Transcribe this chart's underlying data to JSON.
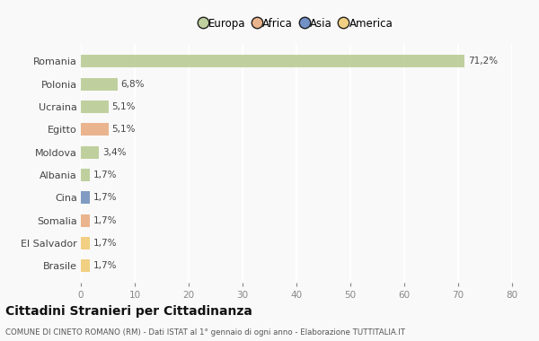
{
  "categories": [
    "Romania",
    "Polonia",
    "Ucraina",
    "Egitto",
    "Moldova",
    "Albania",
    "Cina",
    "Somalia",
    "El Salvador",
    "Brasile"
  ],
  "values": [
    71.2,
    6.8,
    5.1,
    5.1,
    3.4,
    1.7,
    1.7,
    1.7,
    1.7,
    1.7
  ],
  "labels": [
    "71,2%",
    "6,8%",
    "5,1%",
    "5,1%",
    "3,4%",
    "1,7%",
    "1,7%",
    "1,7%",
    "1,7%",
    "1,7%"
  ],
  "colors": [
    "#b5c98e",
    "#b5c98e",
    "#b5c98e",
    "#e8a87c",
    "#b5c98e",
    "#b5c98e",
    "#6b8cba",
    "#e8a87c",
    "#f0c96e",
    "#f0c96e"
  ],
  "legend_labels": [
    "Europa",
    "Africa",
    "Asia",
    "America"
  ],
  "legend_colors": [
    "#b5c98e",
    "#e8a87c",
    "#5a7fbf",
    "#f0c96e"
  ],
  "title": "Cittadini Stranieri per Cittadinanza",
  "subtitle": "COMUNE DI CINETO ROMANO (RM) - Dati ISTAT al 1° gennaio di ogni anno - Elaborazione TUTTITALIA.IT",
  "xlim": [
    0,
    80
  ],
  "xticks": [
    0,
    10,
    20,
    30,
    40,
    50,
    60,
    70,
    80
  ],
  "background_color": "#f9f9f9",
  "grid_color": "#ffffff",
  "bar_height": 0.55
}
